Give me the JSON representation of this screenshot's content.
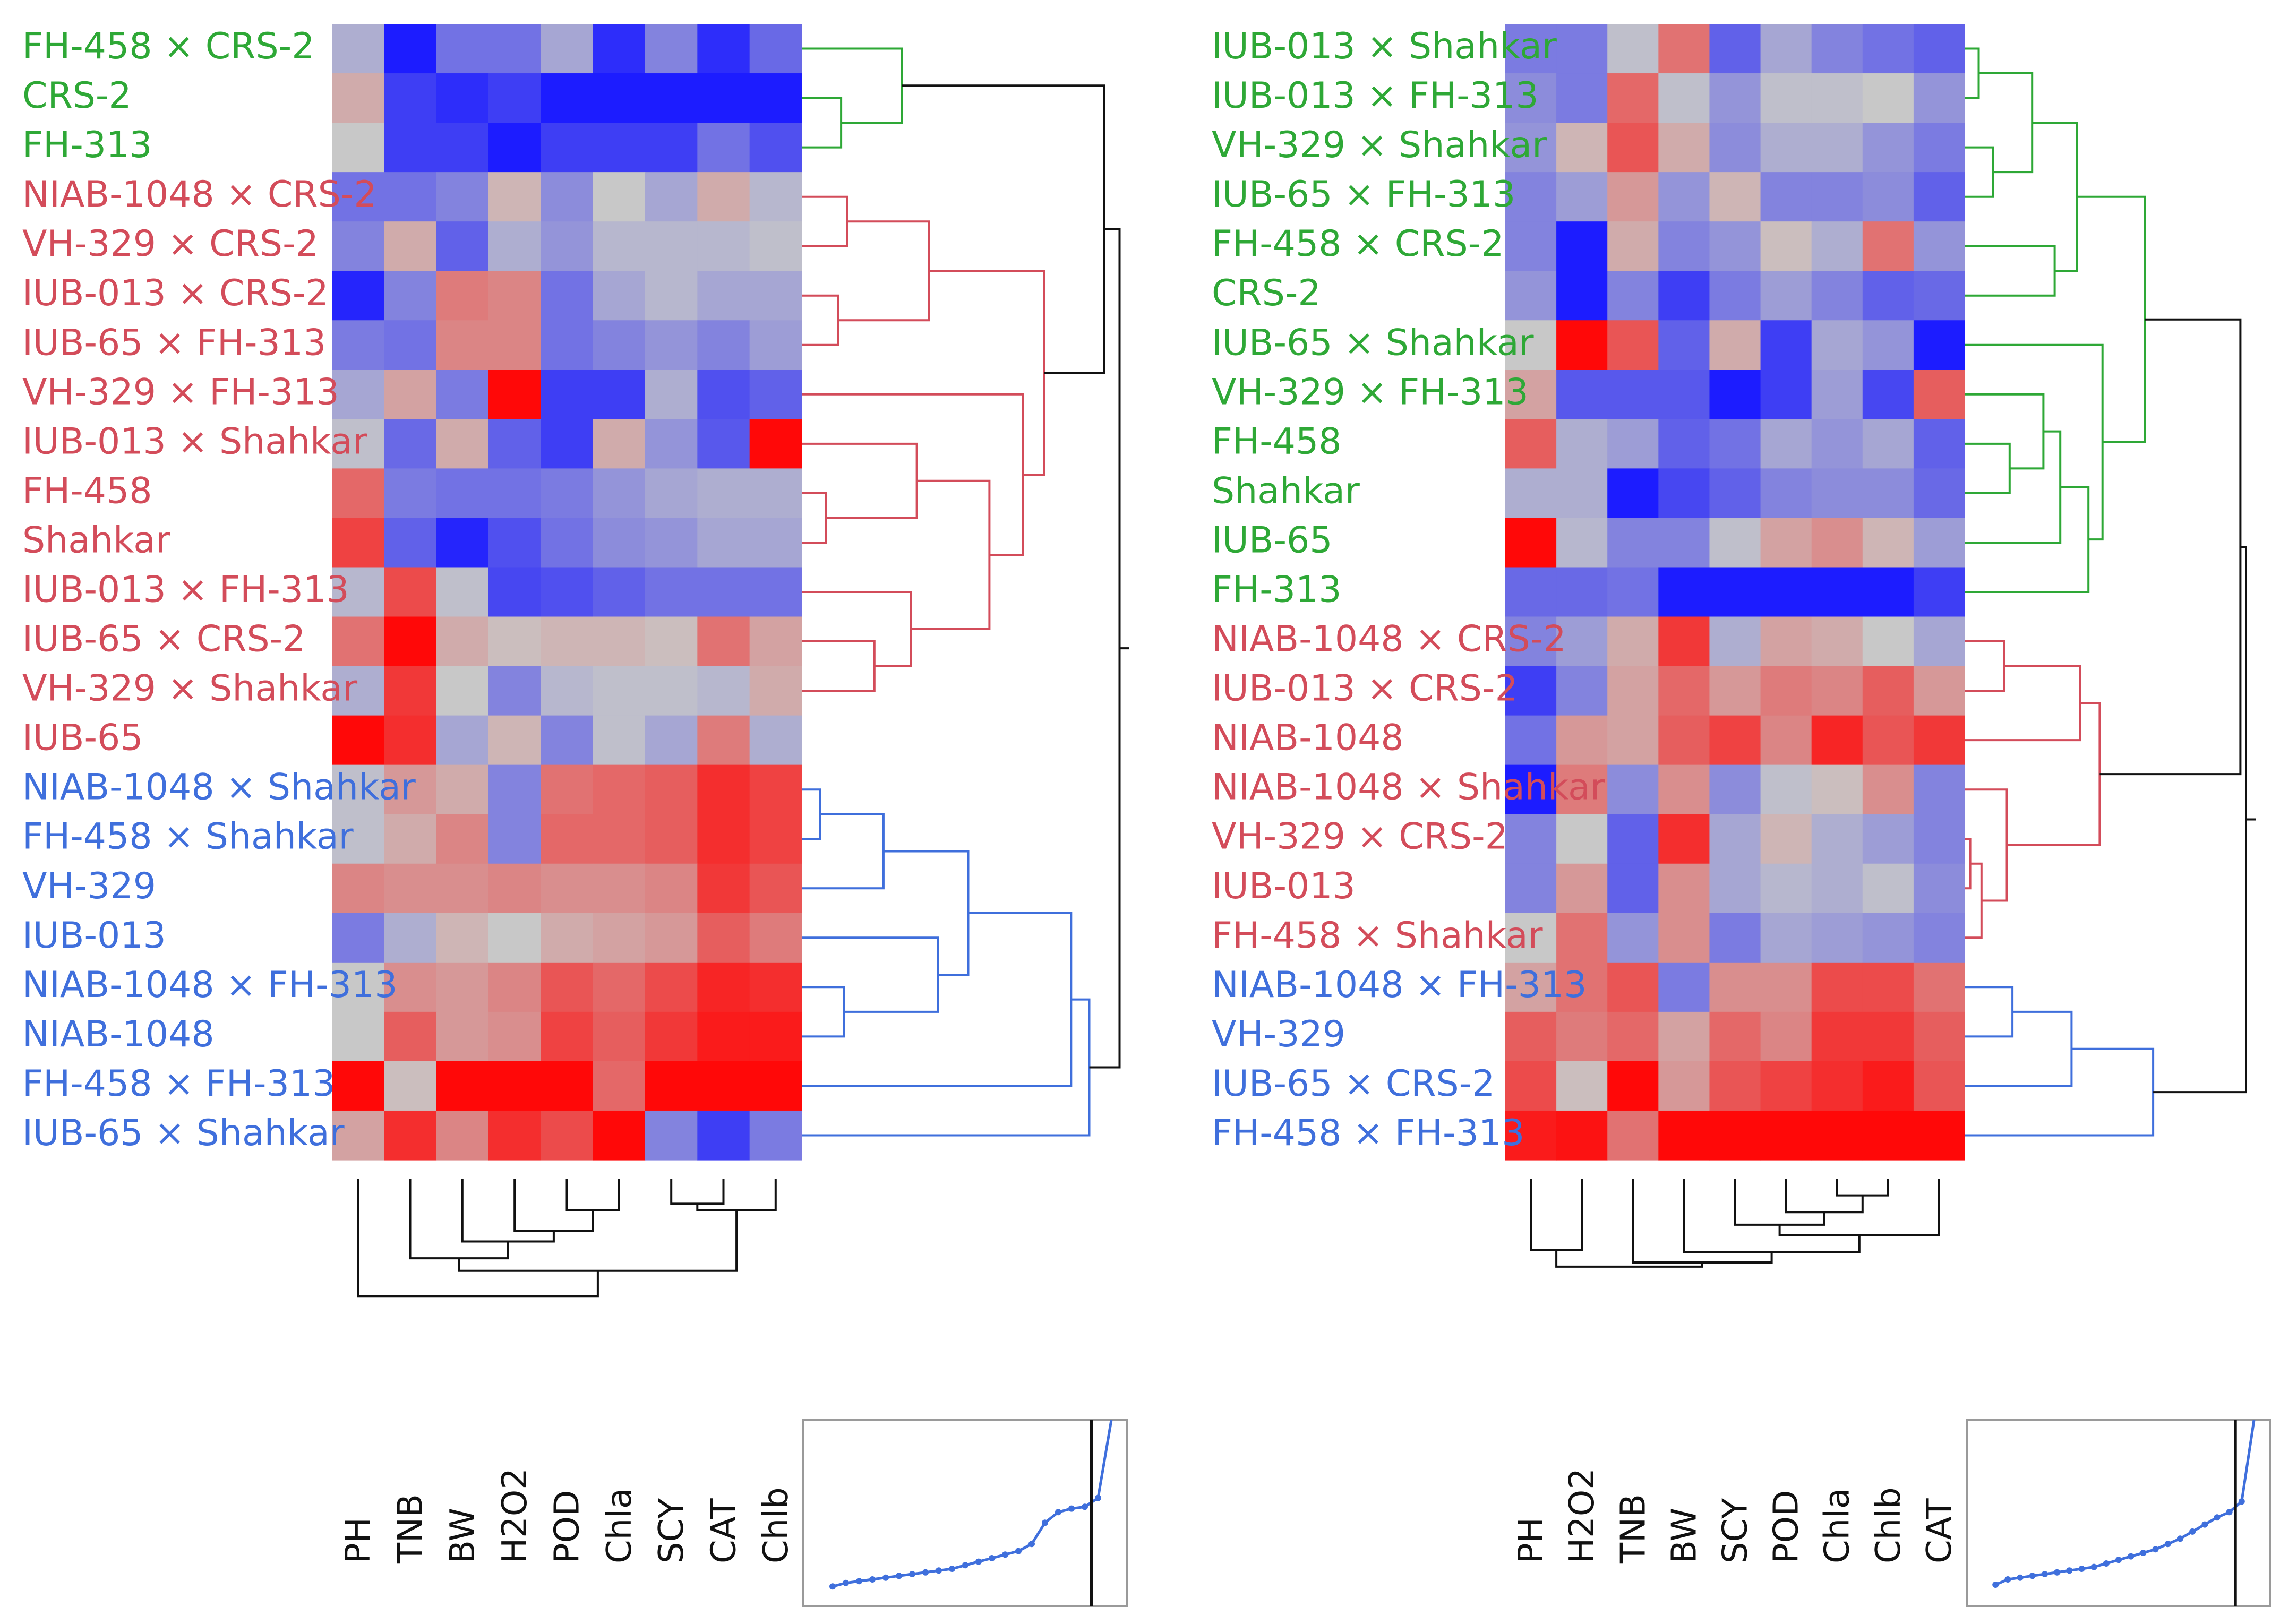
{
  "palette": {
    "green": "#2ea836",
    "red": "#d34c5a",
    "blue": "#3f6fdc",
    "black": "#111111",
    "low": "#1c1cff",
    "mid": "#c8c8c8",
    "high": "#ff0808"
  },
  "chart_data": [
    {
      "type": "heatmap",
      "title": "",
      "xlabel": "",
      "ylabel": "",
      "value_range": [
        -2,
        2
      ],
      "columns": [
        "PH",
        "TNB",
        "BW",
        "H2O2",
        "POD",
        "Chla",
        "SCY",
        "CAT",
        "Chlb"
      ],
      "rows": [
        {
          "label": "FH-458 × CRS-2",
          "cluster": "green"
        },
        {
          "label": "CRS-2",
          "cluster": "green"
        },
        {
          "label": "FH-313",
          "cluster": "green"
        },
        {
          "label": "NIAB-1048 × CRS-2",
          "cluster": "red"
        },
        {
          "label": "VH-329 × CRS-2",
          "cluster": "red"
        },
        {
          "label": "IUB-013 × CRS-2",
          "cluster": "red"
        },
        {
          "label": "IUB-65 × FH-313",
          "cluster": "red"
        },
        {
          "label": "VH-329 × FH-313",
          "cluster": "red"
        },
        {
          "label": "IUB-013 × Shahkar",
          "cluster": "red"
        },
        {
          "label": "FH-458",
          "cluster": "red"
        },
        {
          "label": "Shahkar",
          "cluster": "red"
        },
        {
          "label": "IUB-013 × FH-313",
          "cluster": "red"
        },
        {
          "label": "IUB-65 × CRS-2",
          "cluster": "red"
        },
        {
          "label": "VH-329 × Shahkar",
          "cluster": "red"
        },
        {
          "label": "IUB-65",
          "cluster": "red"
        },
        {
          "label": "NIAB-1048 × Shahkar",
          "cluster": "blue"
        },
        {
          "label": "FH-458 × Shahkar",
          "cluster": "blue"
        },
        {
          "label": "VH-329",
          "cluster": "blue"
        },
        {
          "label": "IUB-013",
          "cluster": "blue"
        },
        {
          "label": "NIAB-1048 × FH-313",
          "cluster": "blue"
        },
        {
          "label": "NIAB-1048",
          "cluster": "blue"
        },
        {
          "label": "FH-458 × FH-313",
          "cluster": "blue"
        },
        {
          "label": "IUB-65 × Shahkar",
          "cluster": "blue"
        }
      ],
      "values": [
        [
          -0.3,
          -2.0,
          -1.0,
          -1.0,
          -0.4,
          -1.8,
          -0.8,
          -1.8,
          -1.1
        ],
        [
          0.3,
          -1.6,
          -1.8,
          -1.6,
          -2.0,
          -2.0,
          -2.0,
          -2.0,
          -2.0
        ],
        [
          0.0,
          -1.6,
          -1.6,
          -2.0,
          -1.6,
          -1.6,
          -1.6,
          -1.0,
          -1.4
        ],
        [
          -1.0,
          -1.0,
          -0.8,
          0.2,
          -0.7,
          0.0,
          -0.4,
          0.3,
          -0.2
        ],
        [
          -0.8,
          0.3,
          -1.2,
          -0.3,
          -0.6,
          -0.2,
          -0.2,
          -0.2,
          -0.1
        ],
        [
          -1.9,
          -0.8,
          0.8,
          0.7,
          -1.0,
          -0.4,
          -0.2,
          -0.4,
          -0.4
        ],
        [
          -0.9,
          -1.0,
          0.7,
          0.7,
          -1.0,
          -0.8,
          -0.6,
          -0.8,
          -0.5
        ],
        [
          -0.4,
          0.4,
          -0.9,
          2.0,
          -1.6,
          -1.6,
          -0.3,
          -1.4,
          -1.2
        ],
        [
          -0.1,
          -1.1,
          0.3,
          -1.2,
          -1.6,
          0.3,
          -0.6,
          -1.3,
          2.0
        ],
        [
          1.0,
          -0.9,
          -1.0,
          -1.0,
          -0.9,
          -0.6,
          -0.4,
          -0.3,
          -0.3
        ],
        [
          1.4,
          -1.2,
          -1.9,
          -1.4,
          -1.0,
          -0.7,
          -0.6,
          -0.4,
          -0.4
        ],
        [
          -0.2,
          1.3,
          -0.1,
          -1.5,
          -1.4,
          -1.2,
          -1.0,
          -1.0,
          -1.0
        ],
        [
          0.9,
          2.0,
          0.3,
          0.1,
          0.2,
          0.2,
          0.1,
          0.9,
          0.4
        ],
        [
          -0.3,
          1.5,
          0.0,
          -0.8,
          -0.2,
          -0.1,
          -0.1,
          -0.2,
          0.3
        ],
        [
          2.0,
          1.6,
          -0.4,
          0.2,
          -0.8,
          -0.1,
          -0.4,
          0.8,
          -0.3
        ],
        [
          -0.1,
          0.5,
          0.3,
          -0.8,
          0.9,
          1.0,
          1.1,
          1.6,
          1.4
        ],
        [
          -0.1,
          0.3,
          0.7,
          -0.8,
          1.0,
          1.0,
          1.1,
          1.6,
          1.4
        ],
        [
          0.7,
          0.6,
          0.6,
          0.7,
          0.6,
          0.6,
          0.7,
          1.5,
          1.2
        ],
        [
          -0.9,
          -0.3,
          0.2,
          0.0,
          0.3,
          0.4,
          0.5,
          1.1,
          0.8
        ],
        [
          0.0,
          0.6,
          0.5,
          0.7,
          1.2,
          1.0,
          1.3,
          1.7,
          1.6
        ],
        [
          0.0,
          1.1,
          0.5,
          0.6,
          1.4,
          1.1,
          1.5,
          1.8,
          1.8
        ],
        [
          2.0,
          0.1,
          2.0,
          2.0,
          2.0,
          1.0,
          2.0,
          2.0,
          2.0
        ],
        [
          0.4,
          1.6,
          0.7,
          1.6,
          1.3,
          2.0,
          -0.8,
          -1.6,
          -0.9
        ]
      ]
    },
    {
      "type": "heatmap",
      "title": "",
      "xlabel": "",
      "ylabel": "",
      "value_range": [
        -2,
        2
      ],
      "columns": [
        "PH",
        "H2O2",
        "TNB",
        "BW",
        "SCY",
        "POD",
        "Chla",
        "Chlb",
        "CAT"
      ],
      "rows": [
        {
          "label": "IUB-013 × Shahkar",
          "cluster": "green"
        },
        {
          "label": "IUB-013 × FH-313",
          "cluster": "green"
        },
        {
          "label": "VH-329 × Shahkar",
          "cluster": "green"
        },
        {
          "label": "IUB-65 × FH-313",
          "cluster": "green"
        },
        {
          "label": "FH-458 × CRS-2",
          "cluster": "green"
        },
        {
          "label": "CRS-2",
          "cluster": "green"
        },
        {
          "label": "IUB-65 × Shahkar",
          "cluster": "green"
        },
        {
          "label": "VH-329 × FH-313",
          "cluster": "green"
        },
        {
          "label": "FH-458",
          "cluster": "green"
        },
        {
          "label": "Shahkar",
          "cluster": "green"
        },
        {
          "label": "IUB-65",
          "cluster": "green"
        },
        {
          "label": "FH-313",
          "cluster": "green"
        },
        {
          "label": "NIAB-1048 × CRS-2",
          "cluster": "red"
        },
        {
          "label": "IUB-013 × CRS-2",
          "cluster": "red"
        },
        {
          "label": "NIAB-1048",
          "cluster": "red"
        },
        {
          "label": "NIAB-1048 × Shahkar",
          "cluster": "red"
        },
        {
          "label": "VH-329 × CRS-2",
          "cluster": "red"
        },
        {
          "label": "IUB-013",
          "cluster": "red"
        },
        {
          "label": "FH-458 × Shahkar",
          "cluster": "red"
        },
        {
          "label": "NIAB-1048 × FH-313",
          "cluster": "blue"
        },
        {
          "label": "VH-329",
          "cluster": "blue"
        },
        {
          "label": "IUB-65 × CRS-2",
          "cluster": "blue"
        },
        {
          "label": "FH-458 × FH-313",
          "cluster": "blue"
        }
      ],
      "values": [
        [
          -0.9,
          -0.9,
          -0.1,
          0.9,
          -1.2,
          -0.4,
          -0.8,
          -1.0,
          -1.2
        ],
        [
          -0.7,
          -0.9,
          1.0,
          -0.1,
          -0.6,
          -0.1,
          -0.1,
          0.0,
          -0.6
        ],
        [
          -0.6,
          0.2,
          1.2,
          0.3,
          -0.7,
          -0.3,
          -0.3,
          -0.6,
          -0.9
        ],
        [
          -0.8,
          -0.5,
          0.5,
          -0.6,
          0.2,
          -0.8,
          -0.8,
          -0.7,
          -1.2
        ],
        [
          -0.8,
          -2.0,
          0.3,
          -0.8,
          -0.6,
          0.1,
          -0.3,
          0.9,
          -0.6
        ],
        [
          -0.6,
          -2.0,
          -0.8,
          -1.6,
          -0.9,
          -0.5,
          -0.8,
          -1.2,
          -1.1
        ],
        [
          0.0,
          2.0,
          1.2,
          -1.2,
          0.3,
          -1.6,
          -0.4,
          -0.6,
          -2.0
        ],
        [
          0.4,
          -1.3,
          -1.3,
          -1.3,
          -2.0,
          -1.6,
          -0.5,
          -1.5,
          1.1
        ],
        [
          1.1,
          -0.3,
          -0.5,
          -1.2,
          -1.0,
          -0.4,
          -0.6,
          -0.4,
          -1.2
        ],
        [
          -0.3,
          -0.3,
          -2.0,
          -1.5,
          -1.2,
          -0.8,
          -0.7,
          -0.7,
          -1.1
        ],
        [
          2.0,
          -0.2,
          -0.8,
          -0.8,
          -0.1,
          0.4,
          0.6,
          0.2,
          -0.5
        ],
        [
          -1.1,
          -1.1,
          -1.0,
          -2.0,
          -2.0,
          -2.0,
          -2.0,
          -2.0,
          -1.6
        ],
        [
          -0.8,
          -0.5,
          0.3,
          1.5,
          -0.3,
          0.4,
          0.3,
          0.0,
          -0.4
        ],
        [
          -1.6,
          -0.8,
          0.4,
          1.0,
          0.5,
          0.8,
          0.7,
          1.1,
          0.5
        ],
        [
          -1.0,
          0.5,
          0.4,
          1.1,
          1.4,
          0.7,
          1.7,
          1.2,
          1.5
        ],
        [
          -2.0,
          0.8,
          -0.7,
          0.6,
          -0.7,
          -0.1,
          0.1,
          0.6,
          -0.8
        ],
        [
          -0.8,
          0.0,
          -1.2,
          1.6,
          -0.4,
          0.2,
          -0.3,
          -0.5,
          -0.8
        ],
        [
          -0.8,
          0.5,
          -1.2,
          0.6,
          -0.4,
          -0.2,
          -0.3,
          -0.1,
          -0.7
        ],
        [
          0.0,
          0.9,
          -0.6,
          0.6,
          -0.9,
          -0.4,
          -0.5,
          -0.6,
          -0.8
        ],
        [
          0.4,
          0.9,
          1.2,
          -0.9,
          0.6,
          0.6,
          1.3,
          1.3,
          0.9
        ],
        [
          1.1,
          0.8,
          1.0,
          0.4,
          1.0,
          0.7,
          1.5,
          1.5,
          1.1
        ],
        [
          1.3,
          0.1,
          2.0,
          0.5,
          1.2,
          1.4,
          1.6,
          1.8,
          1.2
        ],
        [
          1.8,
          1.9,
          0.9,
          2.0,
          2.0,
          2.0,
          2.0,
          2.0,
          2.0
        ]
      ]
    },
    {
      "type": "line",
      "title": "",
      "xlabel": "",
      "ylabel": "",
      "x": [
        1,
        2,
        3,
        4,
        5,
        6,
        7,
        8,
        9,
        10,
        11,
        12,
        13,
        14,
        15,
        16,
        17,
        18,
        19,
        20,
        21,
        22
      ],
      "y": [
        0.02,
        0.04,
        0.05,
        0.06,
        0.07,
        0.08,
        0.09,
        0.1,
        0.11,
        0.12,
        0.14,
        0.16,
        0.18,
        0.2,
        0.22,
        0.26,
        0.38,
        0.44,
        0.46,
        0.47,
        0.52,
        1.0
      ],
      "cutoff_x": 20.5,
      "xlim": [
        0,
        22
      ],
      "ylim": [
        0,
        1.0
      ]
    },
    {
      "type": "line",
      "title": "",
      "xlabel": "",
      "ylabel": "",
      "x": [
        1,
        2,
        3,
        4,
        5,
        6,
        7,
        8,
        9,
        10,
        11,
        12,
        13,
        14,
        15,
        16,
        17,
        18,
        19,
        20,
        21,
        22
      ],
      "y": [
        0.03,
        0.06,
        0.07,
        0.08,
        0.09,
        0.1,
        0.11,
        0.12,
        0.13,
        0.15,
        0.17,
        0.19,
        0.21,
        0.23,
        0.26,
        0.29,
        0.33,
        0.37,
        0.41,
        0.44,
        0.5,
        1.0
      ],
      "cutoff_x": 20.5,
      "xlim": [
        0,
        22
      ],
      "ylim": [
        0,
        1.0
      ]
    }
  ]
}
